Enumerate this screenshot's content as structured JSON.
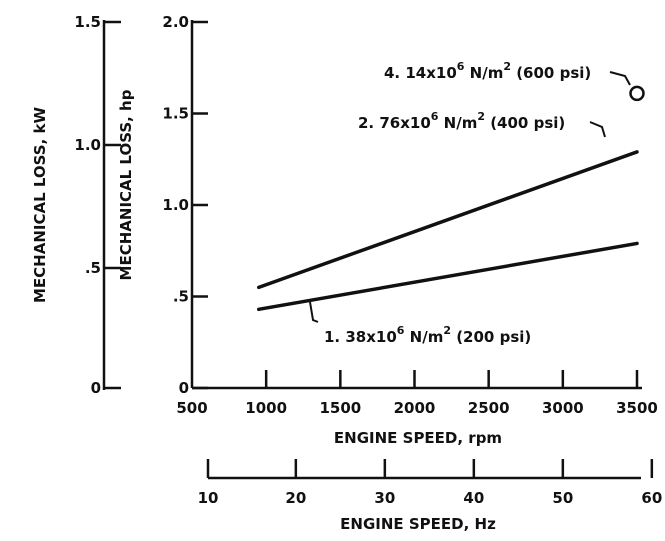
{
  "chart_data": {
    "type": "line",
    "title": "",
    "xlabel": "ENGINE SPEED, rpm",
    "x2label": "ENGINE SPEED, Hz",
    "ylabel": "MECHANICAL LOSS, hp",
    "y2label": "MECHANICAL LOSS, kW",
    "xlim": [
      500,
      3500
    ],
    "ylim": [
      0,
      2.0
    ],
    "x_ticks": [
      "500",
      "1000",
      "1500",
      "2000",
      "2500",
      "3000",
      "3500"
    ],
    "y_ticks": [
      "0",
      ".5",
      "1.0",
      "1.5",
      "2.0"
    ],
    "x2_ticks": [
      "10",
      "20",
      "30",
      "40",
      "50",
      "60"
    ],
    "y2_ticks": [
      "0",
      ".5",
      "1.0",
      "1.5"
    ],
    "series": [
      {
        "name": "1.38x10^6 N/m^2 (200 psi)",
        "x": [
          950,
          3500
        ],
        "y": [
          0.43,
          0.79
        ]
      },
      {
        "name": "2.76x10^6 N/m^2 (400 psi)",
        "x": [
          950,
          3500
        ],
        "y": [
          0.55,
          1.29
        ]
      },
      {
        "name": "4.14x10^6 N/m^2 (600 psi)",
        "x": [
          3500
        ],
        "y": [
          1.61
        ],
        "marker": "open-circle"
      }
    ],
    "annotations": {
      "s200": {
        "base": "1. 38x10",
        "exp": "6",
        "unit": " N/m",
        "unit_exp": "2",
        "tail": " (200 psi)"
      },
      "s400": {
        "base": "2. 76x10",
        "exp": "6",
        "unit": " N/m",
        "unit_exp": "2",
        "tail": " (400 psi)"
      },
      "s600": {
        "base": "4. 14x10",
        "exp": "6",
        "unit": " N/m",
        "unit_exp": "2",
        "tail": " (600 psi)"
      }
    },
    "grid": false,
    "legend": "none"
  }
}
